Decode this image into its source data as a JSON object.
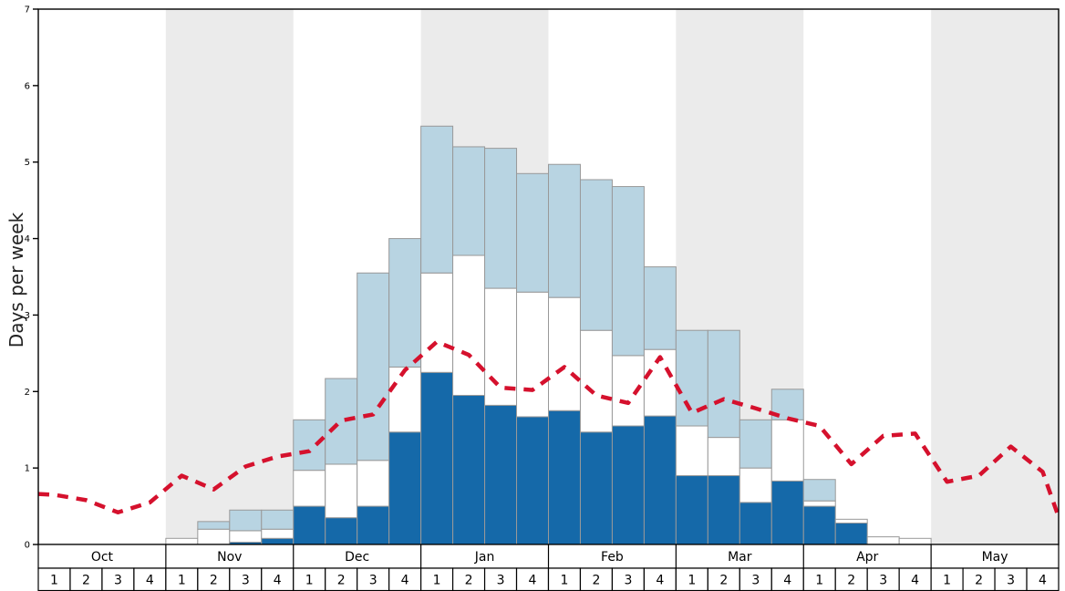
{
  "chart_data": {
    "type": "bar",
    "title": "",
    "ylabel": "Days per week",
    "ylim": [
      0,
      7
    ],
    "yticks": [
      0,
      1,
      2,
      3,
      4,
      5,
      6,
      7
    ],
    "months": [
      "Oct",
      "Nov",
      "Dec",
      "Jan",
      "Feb",
      "Mar",
      "Apr",
      "May"
    ],
    "week_labels": [
      "1",
      "2",
      "3",
      "4"
    ],
    "band_color": "#ebebeb",
    "frame_color": "#000000",
    "bar_outline_color": "#999999",
    "series": [
      {
        "name": "dark-blue-days",
        "color": "#1569a9",
        "values": [
          0,
          0,
          0,
          0,
          0,
          0,
          0.03,
          0.08,
          0.5,
          0.35,
          0.5,
          1.47,
          2.25,
          1.95,
          1.82,
          1.67,
          1.75,
          1.47,
          1.55,
          1.68,
          0.9,
          0.9,
          0.55,
          0.83,
          0.5,
          0.28,
          0,
          0,
          0,
          0,
          0,
          0
        ]
      },
      {
        "name": "white-days",
        "color": "#ffffff",
        "values": [
          0,
          0,
          0,
          0,
          0.08,
          0.2,
          0.15,
          0.12,
          0.47,
          0.7,
          0.6,
          0.85,
          1.3,
          1.83,
          1.53,
          1.63,
          1.48,
          1.33,
          0.92,
          0.87,
          0.65,
          0.5,
          0.45,
          0.8,
          0.07,
          0.05,
          0.1,
          0.08,
          0,
          0,
          0,
          0
        ]
      },
      {
        "name": "light-blue-days",
        "color": "#b8d4e2",
        "values": [
          0,
          0,
          0,
          0,
          0,
          0.1,
          0.27,
          0.25,
          0.66,
          1.12,
          2.45,
          1.68,
          1.92,
          1.42,
          1.83,
          1.55,
          1.74,
          1.97,
          2.21,
          1.08,
          1.25,
          1.4,
          0.63,
          0.4,
          0.28,
          0,
          0,
          0,
          0,
          0,
          0,
          0
        ]
      }
    ],
    "line": {
      "name": "red-dashed-average",
      "color": "#d5112d",
      "style": "dashed",
      "edge_start": 0.66,
      "edge_end": 0.36,
      "values": [
        0.65,
        0.58,
        0.42,
        0.55,
        0.9,
        0.72,
        1.02,
        1.15,
        1.22,
        1.62,
        1.7,
        2.28,
        2.65,
        2.48,
        2.05,
        2.02,
        2.32,
        1.95,
        1.85,
        2.45,
        1.72,
        1.9,
        1.78,
        1.65,
        1.55,
        1.05,
        1.42,
        1.45,
        0.82,
        0.9,
        1.28,
        0.95
      ]
    }
  }
}
